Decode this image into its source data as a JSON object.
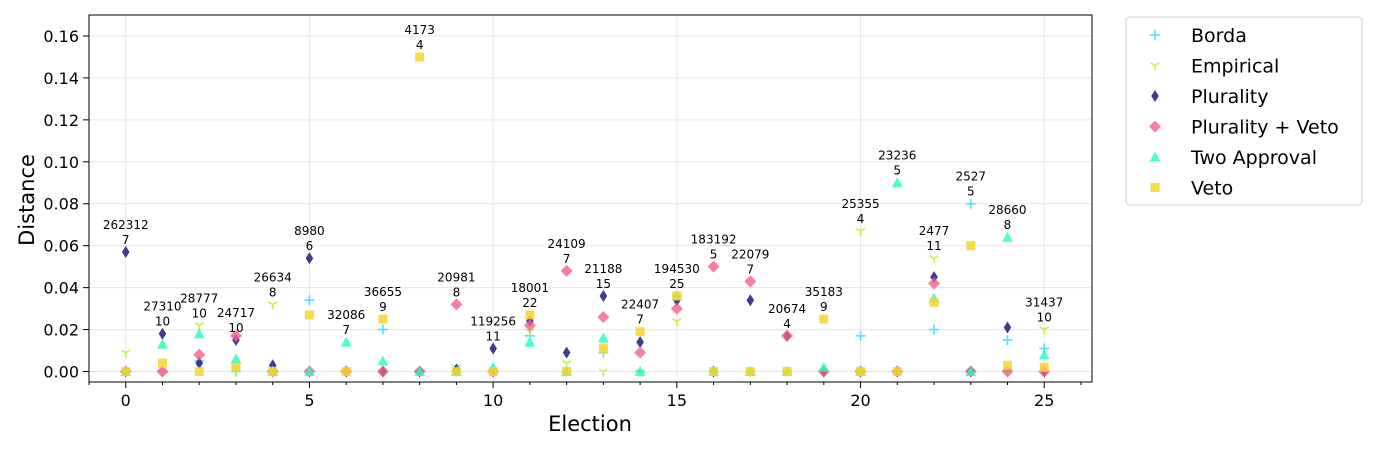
{
  "chart_data": {
    "type": "scatter",
    "title": "",
    "xlabel": "Election",
    "ylabel": "Distance",
    "xlim": [
      -1,
      26.3
    ],
    "ylim": [
      -0.005,
      0.17
    ],
    "xticks": [
      0,
      5,
      10,
      15,
      20,
      25
    ],
    "yticks": [
      0.0,
      0.02,
      0.04,
      0.06,
      0.08,
      0.1,
      0.12,
      0.14,
      0.16
    ],
    "grid": true,
    "legend_position": "outside-right-top",
    "series": [
      {
        "name": "Borda",
        "marker": "plus",
        "color": "#33ddff",
        "points": [
          [
            0,
            0
          ],
          [
            1,
            0
          ],
          [
            2,
            0.005
          ],
          [
            3,
            0
          ],
          [
            4,
            0
          ],
          [
            5,
            0.034
          ],
          [
            6,
            0
          ],
          [
            7,
            0.02
          ],
          [
            8,
            0
          ],
          [
            9,
            0
          ],
          [
            10,
            0
          ],
          [
            11,
            0.017
          ],
          [
            12,
            0
          ],
          [
            13,
            0.009
          ],
          [
            14,
            0
          ],
          [
            15,
            0.036
          ],
          [
            16,
            0
          ],
          [
            17,
            0
          ],
          [
            18,
            0
          ],
          [
            19,
            0
          ],
          [
            20,
            0.017
          ],
          [
            21,
            0
          ],
          [
            22,
            0.02
          ],
          [
            23,
            0.08
          ],
          [
            24,
            0.015
          ],
          [
            25,
            0.011
          ]
        ]
      },
      {
        "name": "Empirical",
        "marker": "tri_down",
        "color": "#bbee33",
        "points": [
          [
            0,
            0.009
          ],
          [
            1,
            0
          ],
          [
            2,
            0.022
          ],
          [
            3,
            0
          ],
          [
            4,
            0.032
          ],
          [
            5,
            0
          ],
          [
            6,
            0
          ],
          [
            7,
            0
          ],
          [
            8,
            0
          ],
          [
            9,
            0.002
          ],
          [
            10,
            0
          ],
          [
            11,
            0.019
          ],
          [
            12,
            0.004
          ],
          [
            13,
            0
          ],
          [
            14,
            0
          ],
          [
            15,
            0.024
          ],
          [
            16,
            0
          ],
          [
            17,
            0
          ],
          [
            18,
            0
          ],
          [
            19,
            0
          ],
          [
            20,
            0.067
          ],
          [
            21,
            0
          ],
          [
            22,
            0.054
          ],
          [
            23,
            0
          ],
          [
            24,
            0
          ],
          [
            25,
            0.02
          ]
        ]
      },
      {
        "name": "Plurality",
        "marker": "thin_diamond",
        "color": "#1a1a80",
        "points": [
          [
            0,
            0.057
          ],
          [
            1,
            0.018
          ],
          [
            2,
            0.004
          ],
          [
            3,
            0.015
          ],
          [
            4,
            0.003
          ],
          [
            5,
            0.054
          ],
          [
            6,
            0
          ],
          [
            7,
            0
          ],
          [
            8,
            0
          ],
          [
            9,
            0.001
          ],
          [
            10,
            0.011
          ],
          [
            11,
            0.024
          ],
          [
            12,
            0.009
          ],
          [
            13,
            0.036
          ],
          [
            14,
            0.014
          ],
          [
            15,
            0.034
          ],
          [
            16,
            0
          ],
          [
            17,
            0.034
          ],
          [
            18,
            0.017
          ],
          [
            19,
            0
          ],
          [
            20,
            0
          ],
          [
            21,
            0
          ],
          [
            22,
            0.045
          ],
          [
            23,
            0
          ],
          [
            24,
            0.021
          ],
          [
            25,
            0
          ]
        ]
      },
      {
        "name": "Plurality + Veto",
        "marker": "diamond",
        "color": "#f75c8e",
        "points": [
          [
            0,
            0
          ],
          [
            1,
            0
          ],
          [
            2,
            0.008
          ],
          [
            3,
            0.017
          ],
          [
            4,
            0
          ],
          [
            5,
            0
          ],
          [
            6,
            0
          ],
          [
            7,
            0
          ],
          [
            8,
            0
          ],
          [
            9,
            0.032
          ],
          [
            10,
            0
          ],
          [
            11,
            0.022
          ],
          [
            12,
            0.048
          ],
          [
            13,
            0.026
          ],
          [
            14,
            0.009
          ],
          [
            15,
            0.03
          ],
          [
            16,
            0.05
          ],
          [
            17,
            0.043
          ],
          [
            18,
            0.017
          ],
          [
            19,
            0
          ],
          [
            20,
            0
          ],
          [
            21,
            0
          ],
          [
            22,
            0.042
          ],
          [
            23,
            0
          ],
          [
            24,
            0
          ],
          [
            25,
            0
          ]
        ]
      },
      {
        "name": "Two Approval",
        "marker": "triangle_up",
        "color": "#22ffbb",
        "points": [
          [
            0,
            0
          ],
          [
            1,
            0.013
          ],
          [
            2,
            0.018
          ],
          [
            3,
            0.006
          ],
          [
            4,
            0
          ],
          [
            5,
            0
          ],
          [
            6,
            0.014
          ],
          [
            7,
            0.005
          ],
          [
            8,
            0
          ],
          [
            9,
            0
          ],
          [
            10,
            0.002
          ],
          [
            11,
            0.014
          ],
          [
            12,
            0
          ],
          [
            13,
            0.016
          ],
          [
            14,
            0
          ],
          [
            15,
            0.036
          ],
          [
            16,
            0
          ],
          [
            17,
            0
          ],
          [
            18,
            0
          ],
          [
            19,
            0.002
          ],
          [
            20,
            0
          ],
          [
            21,
            0.09
          ],
          [
            22,
            0.035
          ],
          [
            23,
            0
          ],
          [
            24,
            0.064
          ],
          [
            25,
            0.008
          ]
        ]
      },
      {
        "name": "Veto",
        "marker": "square",
        "color": "#f8d52a",
        "points": [
          [
            0,
            0
          ],
          [
            1,
            0.004
          ],
          [
            2,
            0
          ],
          [
            3,
            0.002
          ],
          [
            4,
            0
          ],
          [
            5,
            0.027
          ],
          [
            6,
            0
          ],
          [
            7,
            0.025
          ],
          [
            8,
            0.15
          ],
          [
            9,
            0
          ],
          [
            10,
            0
          ],
          [
            11,
            0.027
          ],
          [
            12,
            0
          ],
          [
            13,
            0.011
          ],
          [
            14,
            0.019
          ],
          [
            15,
            0.036
          ],
          [
            16,
            0
          ],
          [
            17,
            0
          ],
          [
            18,
            0
          ],
          [
            19,
            0.025
          ],
          [
            20,
            0
          ],
          [
            21,
            0
          ],
          [
            22,
            0.033
          ],
          [
            23,
            0.06
          ],
          [
            24,
            0.003
          ],
          [
            25,
            0.002
          ]
        ]
      }
    ],
    "annotations": [
      {
        "x": 0,
        "y": 0.068,
        "line1": "262312",
        "line2": "7"
      },
      {
        "x": 1,
        "y": 0.029,
        "line1": "27310",
        "line2": "10"
      },
      {
        "x": 2,
        "y": 0.033,
        "line1": "28777",
        "line2": "10"
      },
      {
        "x": 3,
        "y": 0.026,
        "line1": "24717",
        "line2": "10"
      },
      {
        "x": 4,
        "y": 0.043,
        "line1": "26634",
        "line2": "8"
      },
      {
        "x": 5,
        "y": 0.065,
        "line1": "8980",
        "line2": "6"
      },
      {
        "x": 6,
        "y": 0.025,
        "line1": "32086",
        "line2": "7"
      },
      {
        "x": 7,
        "y": 0.036,
        "line1": "36655",
        "line2": "9"
      },
      {
        "x": 8,
        "y": 0.161,
        "line1": "4173",
        "line2": "4"
      },
      {
        "x": 9,
        "y": 0.043,
        "line1": "20981",
        "line2": "8"
      },
      {
        "x": 10,
        "y": 0.022,
        "line1": "119256",
        "line2": "11"
      },
      {
        "x": 11,
        "y": 0.038,
        "line1": "18001",
        "line2": "22"
      },
      {
        "x": 12,
        "y": 0.059,
        "line1": "24109",
        "line2": "7"
      },
      {
        "x": 13,
        "y": 0.047,
        "line1": "21188",
        "line2": "15"
      },
      {
        "x": 14,
        "y": 0.03,
        "line1": "22407",
        "line2": "7"
      },
      {
        "x": 15,
        "y": 0.047,
        "line1": "194530",
        "line2": "25"
      },
      {
        "x": 16,
        "y": 0.061,
        "line1": "183192",
        "line2": "5"
      },
      {
        "x": 17,
        "y": 0.054,
        "line1": "22079",
        "line2": "7"
      },
      {
        "x": 18,
        "y": 0.028,
        "line1": "20674",
        "line2": "4"
      },
      {
        "x": 19,
        "y": 0.036,
        "line1": "35183",
        "line2": "9"
      },
      {
        "x": 20,
        "y": 0.078,
        "line1": "25355",
        "line2": "4"
      },
      {
        "x": 21,
        "y": 0.101,
        "line1": "23236",
        "line2": "5"
      },
      {
        "x": 22,
        "y": 0.065,
        "line1": "2477",
        "line2": "11"
      },
      {
        "x": 23,
        "y": 0.091,
        "line1": "2527",
        "line2": "5"
      },
      {
        "x": 24,
        "y": 0.075,
        "line1": "28660",
        "line2": "8"
      },
      {
        "x": 25,
        "y": 0.031,
        "line1": "31437",
        "line2": "10"
      }
    ]
  }
}
